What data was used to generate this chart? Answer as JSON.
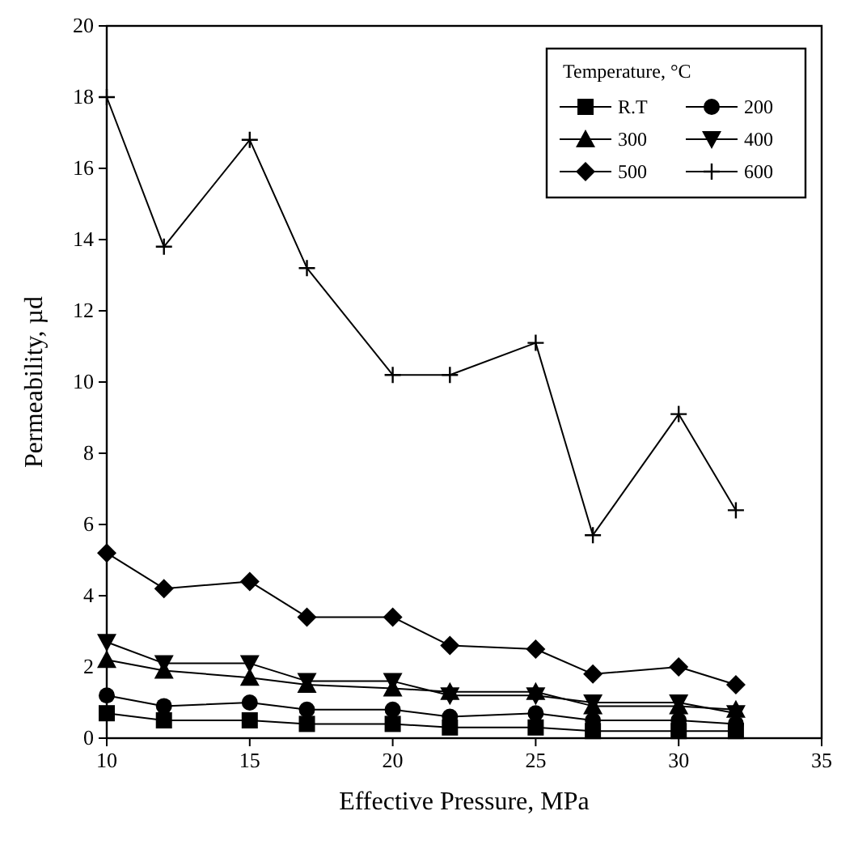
{
  "chart_data": {
    "type": "line",
    "xlabel": "Effective Pressure, MPa",
    "ylabel": "Permeability, µd",
    "legend_title": "Temperature, °C",
    "legend": "top right",
    "x": [
      10,
      12,
      15,
      17,
      20,
      22,
      25,
      27,
      30,
      32
    ],
    "xlim": [
      10,
      35
    ],
    "xticks": [
      10,
      15,
      20,
      25,
      30,
      35
    ],
    "ylim": [
      0,
      20
    ],
    "yticks": [
      0,
      2,
      4,
      6,
      8,
      10,
      12,
      14,
      16,
      18,
      20
    ],
    "grid": false,
    "series": [
      {
        "name": "R.T",
        "color": "#000000",
        "marker": "square",
        "values": [
          0.7,
          0.5,
          0.5,
          0.4,
          0.4,
          0.3,
          0.3,
          0.2,
          0.2,
          0.2
        ]
      },
      {
        "name": "200",
        "color": "#000000",
        "marker": "circle",
        "values": [
          1.2,
          0.9,
          1.0,
          0.8,
          0.8,
          0.6,
          0.7,
          0.5,
          0.5,
          0.4
        ]
      },
      {
        "name": "300",
        "color": "#000000",
        "marker": "triangle",
        "values": [
          2.2,
          1.9,
          1.7,
          1.5,
          1.4,
          1.3,
          1.3,
          0.9,
          0.9,
          0.8
        ]
      },
      {
        "name": "400",
        "color": "#000000",
        "marker": "triangle-down",
        "values": [
          2.7,
          2.1,
          2.1,
          1.6,
          1.6,
          1.2,
          1.2,
          1.0,
          1.0,
          0.7
        ]
      },
      {
        "name": "500",
        "color": "#000000",
        "marker": "diamond",
        "values": [
          5.2,
          4.2,
          4.4,
          3.4,
          3.4,
          2.6,
          2.5,
          1.8,
          2.0,
          1.5
        ]
      },
      {
        "name": "600",
        "color": "#000000",
        "marker": "cross",
        "values": [
          18.0,
          13.8,
          16.8,
          13.2,
          10.2,
          10.2,
          11.1,
          5.7,
          9.1,
          6.4
        ]
      }
    ]
  }
}
